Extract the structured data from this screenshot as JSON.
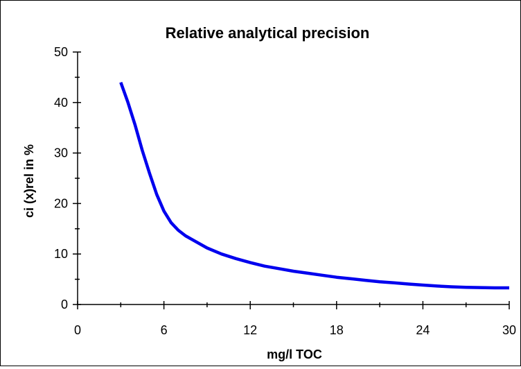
{
  "chart_data": {
    "type": "line",
    "title": "Relative analytical precision",
    "xlabel": "mg/l TOC",
    "ylabel": "ci (x)rel in %",
    "xlim": [
      0,
      30
    ],
    "ylim": [
      0,
      50
    ],
    "x_ticks": [
      0,
      6,
      12,
      18,
      24,
      30
    ],
    "y_ticks": [
      0,
      10,
      20,
      30,
      40,
      50
    ],
    "x_minor_step": 3,
    "y_minor_step": 5,
    "grid": false,
    "legend": "none",
    "line_color": "#0000ee",
    "series": [
      {
        "x": [
          3,
          3.5,
          4,
          4.5,
          5,
          5.5,
          6,
          6.5,
          7,
          7.5,
          8,
          9,
          10,
          11,
          12,
          13,
          14,
          15,
          16,
          17,
          18,
          19,
          20,
          21,
          22,
          23,
          24,
          25,
          26,
          27,
          28,
          29,
          30
        ],
        "y": [
          44,
          40,
          35.5,
          30.5,
          26,
          21.8,
          18.5,
          16.2,
          14.7,
          13.6,
          12.8,
          11.2,
          10,
          9.1,
          8.3,
          7.6,
          7.1,
          6.6,
          6.2,
          5.8,
          5.4,
          5.1,
          4.8,
          4.5,
          4.3,
          4.05,
          3.85,
          3.65,
          3.5,
          3.4,
          3.35,
          3.3,
          3.3
        ]
      }
    ]
  }
}
